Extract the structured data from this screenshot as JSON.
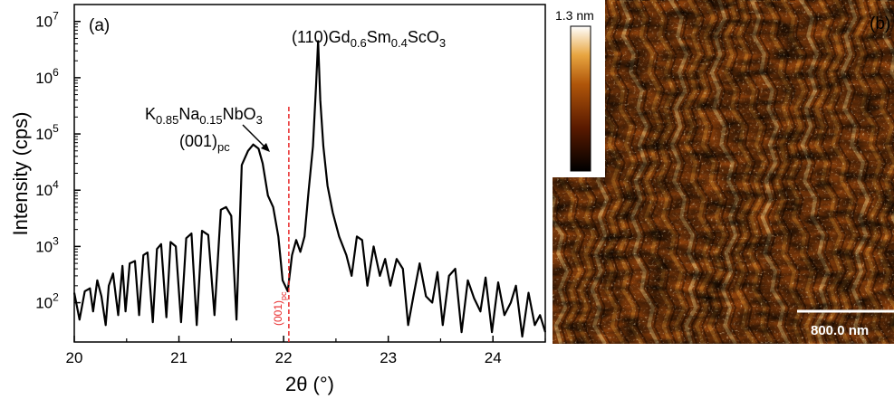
{
  "chart_data": [
    {
      "panel_label": "(a)",
      "type": "line",
      "xlabel": "2θ (°)",
      "ylabel": "Intensity (cps)",
      "xlim": [
        20,
        24.5
      ],
      "ylim": [
        20,
        20000000
      ],
      "yscale": "log",
      "x_ticks": [
        "20",
        "21",
        "22",
        "23",
        "24"
      ],
      "y_ticks": [
        {
          "base": "10",
          "exp": "2"
        },
        {
          "base": "10",
          "exp": "3"
        },
        {
          "base": "10",
          "exp": "4"
        },
        {
          "base": "10",
          "exp": "5"
        },
        {
          "base": "10",
          "exp": "6"
        },
        {
          "base": "10",
          "exp": "7"
        }
      ],
      "grid": false,
      "line_color": "#000000",
      "series": [
        {
          "x": [
            20.0,
            20.05,
            20.1,
            20.15,
            20.18,
            20.22,
            20.26,
            20.3,
            20.33,
            20.37,
            20.42,
            20.46,
            20.49,
            20.53,
            20.58,
            20.62,
            20.66,
            20.7,
            20.75,
            20.79,
            20.83,
            20.88,
            20.92,
            20.97,
            21.02,
            21.07,
            21.12,
            21.17,
            21.22,
            21.28,
            21.34,
            21.4,
            21.45,
            21.5,
            21.55,
            21.6,
            21.66,
            21.71,
            21.76,
            21.8,
            21.85,
            21.9,
            21.95,
            21.99,
            22.04,
            22.08,
            22.12,
            22.16,
            22.2,
            22.24,
            22.28,
            22.31,
            22.33,
            22.35,
            22.38,
            22.42,
            22.47,
            22.53,
            22.6,
            22.65,
            22.7,
            22.75,
            22.8,
            22.86,
            22.92,
            22.97,
            23.02,
            23.08,
            23.14,
            23.19,
            23.24,
            23.3,
            23.36,
            23.42,
            23.47,
            23.52,
            23.58,
            23.64,
            23.7,
            23.76,
            23.82,
            23.88,
            23.93,
            23.99,
            24.05,
            24.11,
            24.17,
            24.22,
            24.28,
            24.34,
            24.4,
            24.45,
            24.5
          ],
          "y": [
            150,
            50,
            160,
            180,
            70,
            250,
            130,
            40,
            200,
            330,
            60,
            450,
            70,
            500,
            550,
            60,
            700,
            780,
            45,
            900,
            1100,
            55,
            1200,
            1000,
            45,
            1400,
            1700,
            40,
            1900,
            1600,
            60,
            4500,
            5000,
            3500,
            50,
            28000,
            50000,
            65000,
            55000,
            30000,
            8000,
            5000,
            1500,
            250,
            160,
            700,
            1300,
            800,
            1500,
            10000,
            60000,
            700000,
            4500000,
            400000,
            60000,
            12000,
            4000,
            1500,
            700,
            300,
            1500,
            1300,
            200,
            1000,
            300,
            600,
            200,
            600,
            400,
            40,
            130,
            500,
            130,
            100,
            350,
            40,
            300,
            400,
            30,
            250,
            120,
            70,
            280,
            30,
            230,
            60,
            100,
            200,
            25,
            150,
            40,
            60,
            30
          ]
        }
      ],
      "annotations": [
        {
          "label_parts": [
            {
              "t": "(110)Gd"
            },
            {
              "t": "0.6",
              "sub": true
            },
            {
              "t": "Sm"
            },
            {
              "t": "0.4",
              "sub": true
            },
            {
              "t": "ScO"
            },
            {
              "t": "3",
              "sub": true
            }
          ]
        },
        {
          "label_parts": [
            {
              "t": "K"
            },
            {
              "t": "0.85",
              "sub": true
            },
            {
              "t": "Na"
            },
            {
              "t": "0.15",
              "sub": true
            },
            {
              "t": "NbO"
            },
            {
              "t": "3",
              "sub": true
            }
          ]
        },
        {
          "label_parts": [
            {
              "t": "(001)"
            },
            {
              "t": "pc",
              "sub": true
            }
          ]
        }
      ],
      "reference_line": {
        "x": 22.05,
        "color": "#e8292a",
        "label_parts": [
          {
            "t": "(001)"
          },
          {
            "t": "pc",
            "sub": true
          }
        ]
      }
    },
    {
      "panel_label": "(b)",
      "type": "heatmap",
      "colorbar_max_label": "1.3 nm",
      "scale_bar_label": "800.0 nm",
      "colormap": [
        "#000000",
        "#5a1a00",
        "#b0560a",
        "#e8a540",
        "#ffffff"
      ]
    }
  ]
}
